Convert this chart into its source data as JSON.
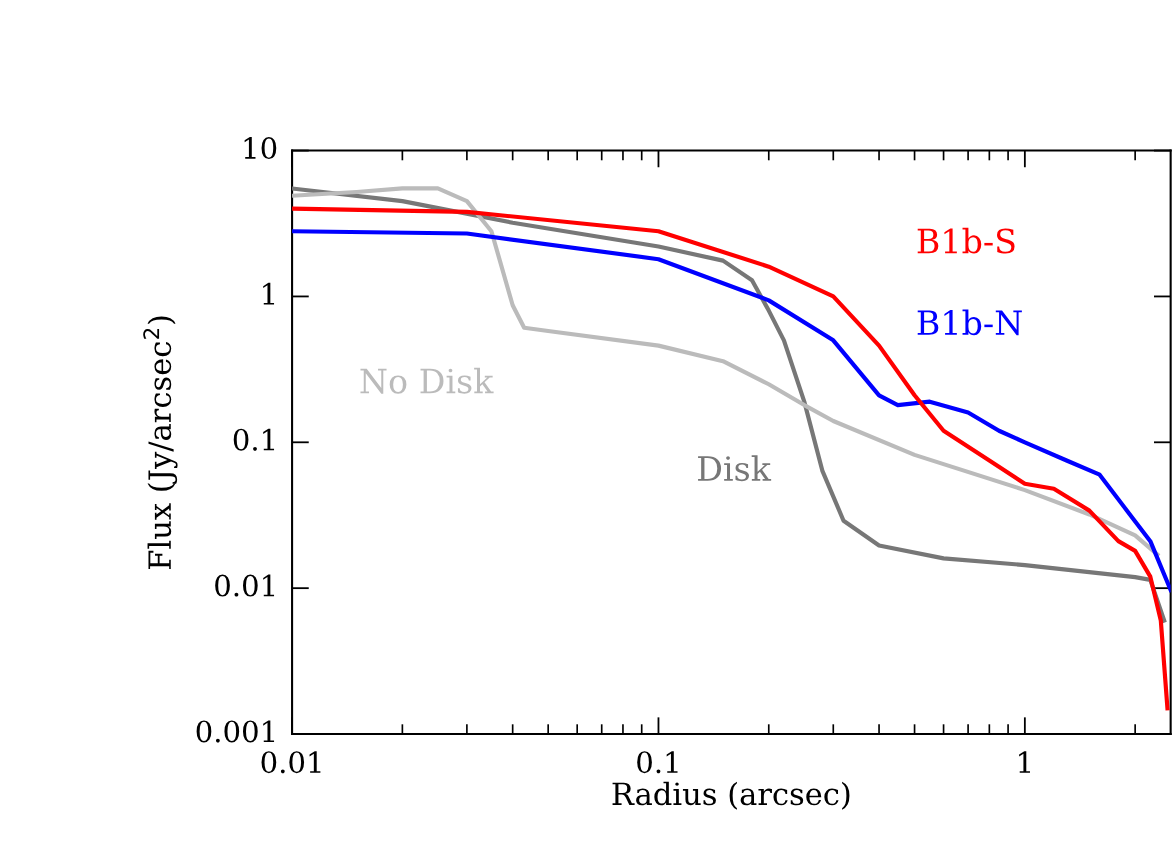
{
  "chart_data": {
    "type": "line",
    "xlabel": "Radius (arcsec)",
    "ylabel": "Flux (Jy/arcsec$^{2}$)",
    "log": "xy",
    "xlim": [
      0.01,
      2.5
    ],
    "xticks": [
      0.01,
      0.1,
      1
    ],
    "ylim": [
      0.001,
      10
    ],
    "yticks": [
      0.001,
      0.01,
      0.1,
      1,
      10
    ],
    "grid": false,
    "legend": false,
    "marker": "none",
    "line_style": "solid",
    "series": [
      {
        "name": "B1b-S",
        "color": "#ff0000",
        "x": [
          0.01,
          0.03,
          0.1,
          0.2,
          0.3,
          0.4,
          0.5,
          0.6,
          0.8,
          1.0,
          1.2,
          1.5,
          1.8,
          2.0,
          2.2,
          2.35,
          2.45
        ],
        "values": [
          4.0,
          3.8,
          2.8,
          1.6,
          1.0,
          0.46,
          0.21,
          0.12,
          0.075,
          0.052,
          0.048,
          0.034,
          0.021,
          0.018,
          0.012,
          0.006,
          0.0015
        ]
      },
      {
        "name": "B1b-N",
        "color": "#0000ff",
        "x": [
          0.01,
          0.03,
          0.1,
          0.2,
          0.3,
          0.4,
          0.45,
          0.55,
          0.7,
          0.85,
          1.0,
          1.3,
          1.6,
          1.9,
          2.2,
          2.5
        ],
        "values": [
          2.8,
          2.7,
          1.8,
          0.94,
          0.5,
          0.21,
          0.18,
          0.19,
          0.16,
          0.12,
          0.1,
          0.075,
          0.06,
          0.034,
          0.021,
          0.0097
        ]
      },
      {
        "name": "No Disk",
        "color": "#bbbbbb",
        "x": [
          0.01,
          0.015,
          0.02,
          0.025,
          0.03,
          0.035,
          0.04,
          0.043,
          0.05,
          0.1,
          0.15,
          0.2,
          0.25,
          0.3,
          0.5,
          1.0,
          1.5,
          2.0,
          2.3
        ],
        "values": [
          4.9,
          5.2,
          5.5,
          5.5,
          4.5,
          2.8,
          0.87,
          0.61,
          0.58,
          0.46,
          0.36,
          0.25,
          0.18,
          0.14,
          0.082,
          0.047,
          0.032,
          0.023,
          0.017
        ]
      },
      {
        "name": "Disk",
        "color": "#777777",
        "x": [
          0.01,
          0.02,
          0.04,
          0.1,
          0.15,
          0.18,
          0.2,
          0.22,
          0.25,
          0.28,
          0.32,
          0.4,
          0.6,
          1.0,
          2.0,
          2.2,
          2.4
        ],
        "values": [
          5.5,
          4.5,
          3.2,
          2.2,
          1.76,
          1.29,
          0.8,
          0.5,
          0.19,
          0.064,
          0.029,
          0.0196,
          0.016,
          0.0144,
          0.0119,
          0.0114,
          0.006
        ]
      }
    ]
  }
}
